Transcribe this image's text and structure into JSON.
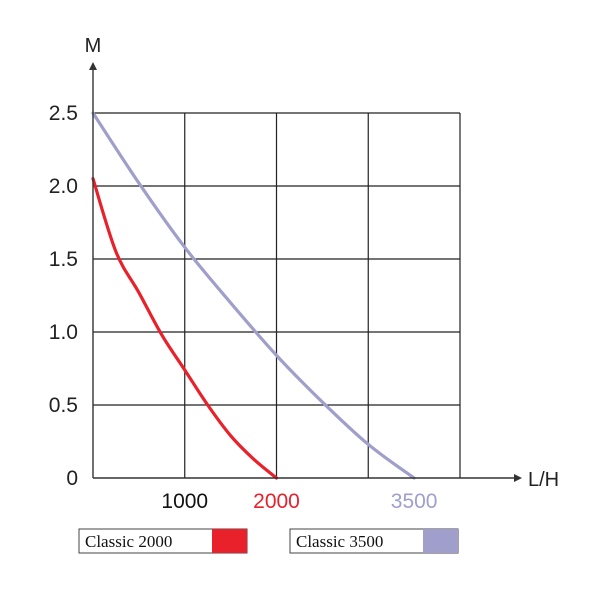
{
  "chart_data": {
    "type": "line",
    "xlabel": "L/H",
    "ylabel": "M",
    "xlim": [
      0,
      4000
    ],
    "ylim": [
      0,
      2.5
    ],
    "grid": true,
    "legend_position": "bottom",
    "y_ticks": [
      "0",
      "0.5",
      "1.0",
      "1.5",
      "2.0",
      "2.5"
    ],
    "y_tick_values": [
      0,
      0.5,
      1.0,
      1.5,
      2.0,
      2.5
    ],
    "x_ticks": [
      {
        "label": "1000",
        "value": 1000,
        "color": "#111111"
      },
      {
        "label": "2000",
        "value": 2000,
        "color": "#e8212b"
      },
      {
        "label": "3500",
        "value": 3500,
        "color": "#a09fcc"
      }
    ],
    "series": [
      {
        "name": "Classic 2000",
        "color": "#e8212b",
        "x": [
          0,
          250,
          500,
          750,
          1000,
          1250,
          1500,
          1750,
          2000
        ],
        "y": [
          2.05,
          1.55,
          1.27,
          0.98,
          0.74,
          0.5,
          0.29,
          0.13,
          0.0
        ]
      },
      {
        "name": "Classic 3500",
        "color": "#a09fcc",
        "x": [
          0,
          500,
          1000,
          1500,
          2000,
          2500,
          3000,
          3500
        ],
        "y": [
          2.5,
          2.02,
          1.58,
          1.2,
          0.84,
          0.52,
          0.23,
          0.0
        ]
      }
    ]
  }
}
